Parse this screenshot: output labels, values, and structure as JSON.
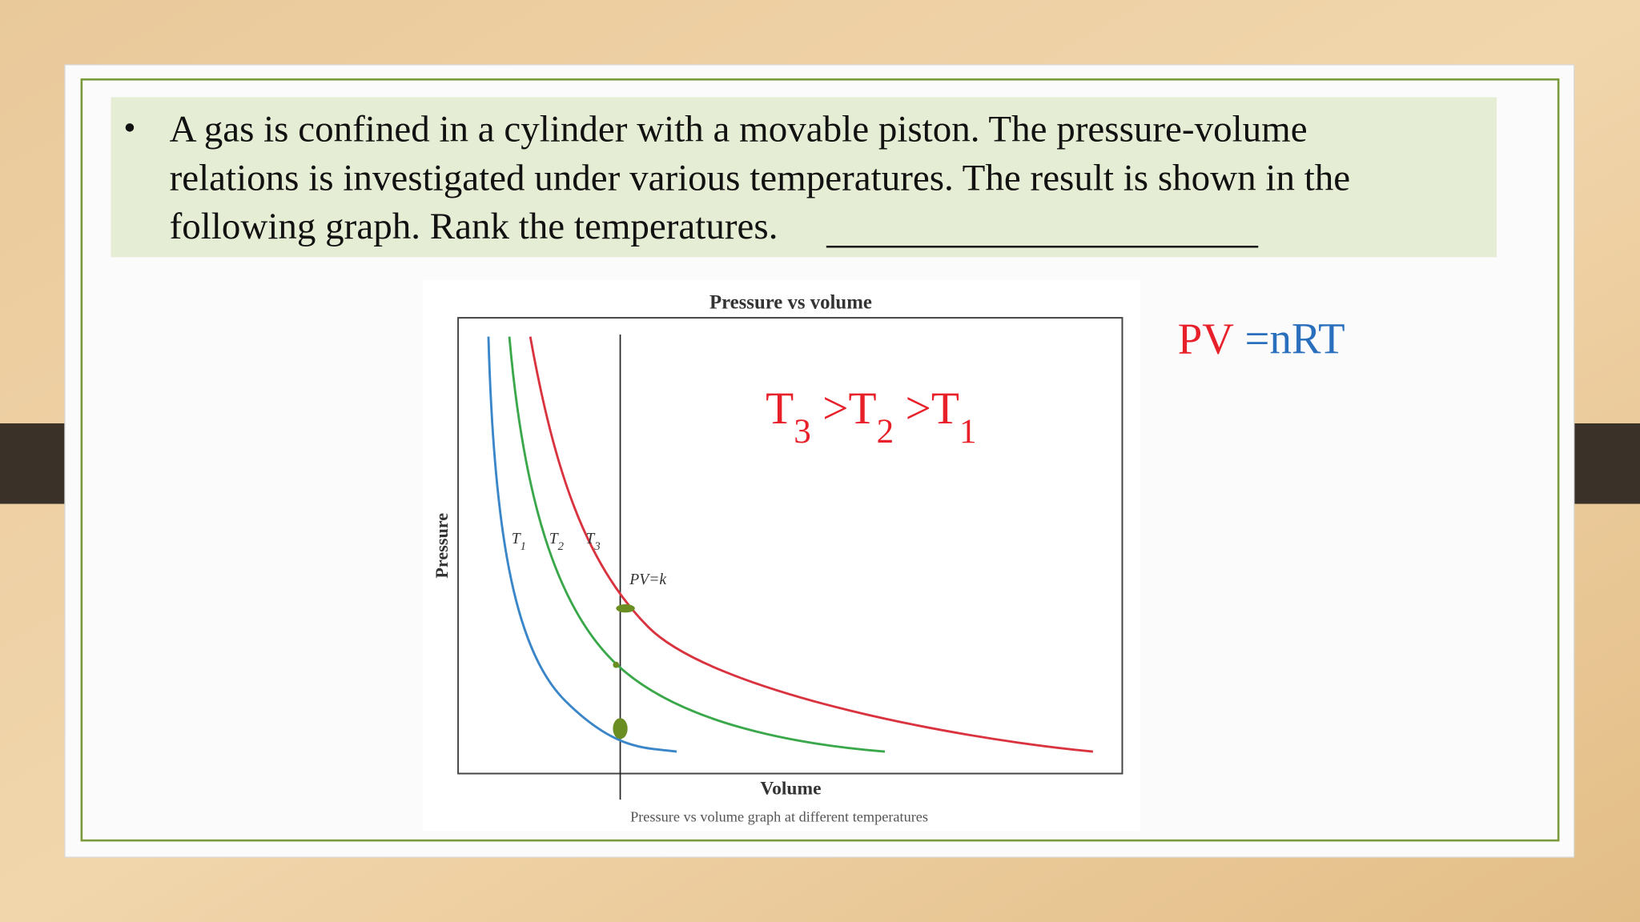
{
  "question": {
    "lines": [
      "A gas is confined in a cylinder with a movable piston.   The pressure-volume",
      "relations is investigated under various temperatures.  The result is shown in the",
      "following graph.  Rank the temperatures."
    ]
  },
  "graph": {
    "title": "Pressure vs volume",
    "x_label": "Volume",
    "y_label": "Pressure",
    "caption": "Pressure vs volume graph at different temperatures",
    "curve_labels": [
      {
        "text": "T",
        "sub": "1"
      },
      {
        "text": "T",
        "sub": "2"
      },
      {
        "text": "T",
        "sub": "3"
      }
    ],
    "annotation": "PV=k"
  },
  "answer": [
    {
      "text": "T",
      "sub": "3"
    },
    {
      "text": " >T",
      "sub": "2"
    },
    {
      "text": " >T",
      "sub": "1"
    }
  ],
  "formula": [
    {
      "text": "PV",
      "color": "#e8202a"
    },
    {
      "text": " =nRT",
      "color": "#2a6fbd"
    }
  ]
}
